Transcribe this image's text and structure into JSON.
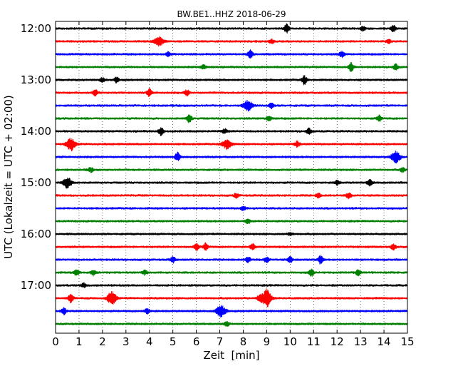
{
  "chart_data": {
    "type": "line",
    "subtype": "dayplot-seismogram",
    "title": "BW.BE1..HHZ 2018-06-29",
    "xlabel": "Zeit  [min]",
    "ylabel": "UTC (Lokalzeit = UTC + 02:00)",
    "xlim": [
      0,
      15
    ],
    "x_ticks": [
      "0",
      "1",
      "2",
      "3",
      "4",
      "5",
      "6",
      "7",
      "8",
      "9",
      "10",
      "11",
      "12",
      "13",
      "14",
      "15"
    ],
    "y_ticks": [
      "12:00",
      "13:00",
      "14:00",
      "15:00",
      "16:00",
      "17:00"
    ],
    "grid": "x-dotted",
    "row_minutes": 15,
    "colors": [
      "#000000",
      "#ff0000",
      "#0000ff",
      "#008000"
    ],
    "traces": [
      {
        "start": "12:00",
        "events": [
          {
            "t": 9.85,
            "a": 6
          },
          {
            "t": 14.4,
            "a": 4
          },
          {
            "t": 13.1,
            "a": 3
          }
        ]
      },
      {
        "start": "12:15",
        "events": [
          {
            "t": 4.4,
            "a": 7
          },
          {
            "t": 9.2,
            "a": 3
          },
          {
            "t": 14.2,
            "a": 3
          }
        ]
      },
      {
        "start": "12:30",
        "events": [
          {
            "t": 4.8,
            "a": 3
          },
          {
            "t": 8.3,
            "a": 6
          },
          {
            "t": 12.2,
            "a": 4
          }
        ]
      },
      {
        "start": "12:45",
        "events": [
          {
            "t": 6.3,
            "a": 3
          },
          {
            "t": 12.6,
            "a": 6
          },
          {
            "t": 14.5,
            "a": 4
          }
        ]
      },
      {
        "start": "13:00",
        "events": [
          {
            "t": 2.6,
            "a": 4
          },
          {
            "t": 10.6,
            "a": 6
          },
          {
            "t": 2.0,
            "a": 3
          }
        ]
      },
      {
        "start": "13:15",
        "events": [
          {
            "t": 1.7,
            "a": 4
          },
          {
            "t": 4.0,
            "a": 5
          },
          {
            "t": 5.6,
            "a": 4
          }
        ]
      },
      {
        "start": "13:30",
        "events": [
          {
            "t": 8.2,
            "a": 7
          },
          {
            "t": 9.2,
            "a": 4
          }
        ]
      },
      {
        "start": "13:45",
        "events": [
          {
            "t": 5.7,
            "a": 6
          },
          {
            "t": 9.1,
            "a": 4
          },
          {
            "t": 13.8,
            "a": 4
          }
        ]
      },
      {
        "start": "14:00",
        "events": [
          {
            "t": 4.5,
            "a": 6
          },
          {
            "t": 7.2,
            "a": 3
          },
          {
            "t": 10.8,
            "a": 4
          }
        ]
      },
      {
        "start": "14:15",
        "events": [
          {
            "t": 0.65,
            "a": 9
          },
          {
            "t": 7.3,
            "a": 7
          },
          {
            "t": 10.3,
            "a": 4
          }
        ]
      },
      {
        "start": "14:30",
        "events": [
          {
            "t": 5.2,
            "a": 6
          },
          {
            "t": 14.5,
            "a": 8
          }
        ]
      },
      {
        "start": "14:45",
        "events": [
          {
            "t": 1.5,
            "a": 3
          },
          {
            "t": 14.8,
            "a": 3
          }
        ]
      },
      {
        "start": "15:00",
        "events": [
          {
            "t": 0.5,
            "a": 7
          },
          {
            "t": 12.0,
            "a": 3
          },
          {
            "t": 13.4,
            "a": 4
          }
        ]
      },
      {
        "start": "15:15",
        "events": [
          {
            "t": 7.7,
            "a": 3
          },
          {
            "t": 11.2,
            "a": 3
          },
          {
            "t": 12.5,
            "a": 4
          }
        ]
      },
      {
        "start": "15:30",
        "events": [
          {
            "t": 8.0,
            "a": 3
          }
        ]
      },
      {
        "start": "15:45",
        "events": [
          {
            "t": 8.2,
            "a": 3
          }
        ]
      },
      {
        "start": "16:00",
        "events": [
          {
            "t": 10.0,
            "a": 2
          }
        ]
      },
      {
        "start": "16:15",
        "events": [
          {
            "t": 6.0,
            "a": 5
          },
          {
            "t": 6.4,
            "a": 5
          },
          {
            "t": 8.4,
            "a": 4
          },
          {
            "t": 14.4,
            "a": 4
          }
        ]
      },
      {
        "start": "16:30",
        "events": [
          {
            "t": 5.0,
            "a": 4
          },
          {
            "t": 8.2,
            "a": 4
          },
          {
            "t": 9.0,
            "a": 4
          },
          {
            "t": 10.0,
            "a": 4
          },
          {
            "t": 11.3,
            "a": 6
          }
        ]
      },
      {
        "start": "16:45",
        "events": [
          {
            "t": 0.9,
            "a": 4
          },
          {
            "t": 1.6,
            "a": 4
          },
          {
            "t": 3.8,
            "a": 3
          },
          {
            "t": 10.9,
            "a": 5
          },
          {
            "t": 12.9,
            "a": 4
          }
        ]
      },
      {
        "start": "17:00",
        "events": [
          {
            "t": 1.2,
            "a": 3
          }
        ]
      },
      {
        "start": "17:15",
        "events": [
          {
            "t": 0.65,
            "a": 6
          },
          {
            "t": 2.4,
            "a": 9
          },
          {
            "t": 9.0,
            "a": 12
          },
          {
            "t": 8.7,
            "a": 5
          }
        ]
      },
      {
        "start": "17:30",
        "events": [
          {
            "t": 0.35,
            "a": 5
          },
          {
            "t": 3.9,
            "a": 4
          },
          {
            "t": 7.05,
            "a": 8
          }
        ]
      },
      {
        "start": "17:45",
        "events": [
          {
            "t": 7.3,
            "a": 3
          }
        ]
      }
    ]
  }
}
